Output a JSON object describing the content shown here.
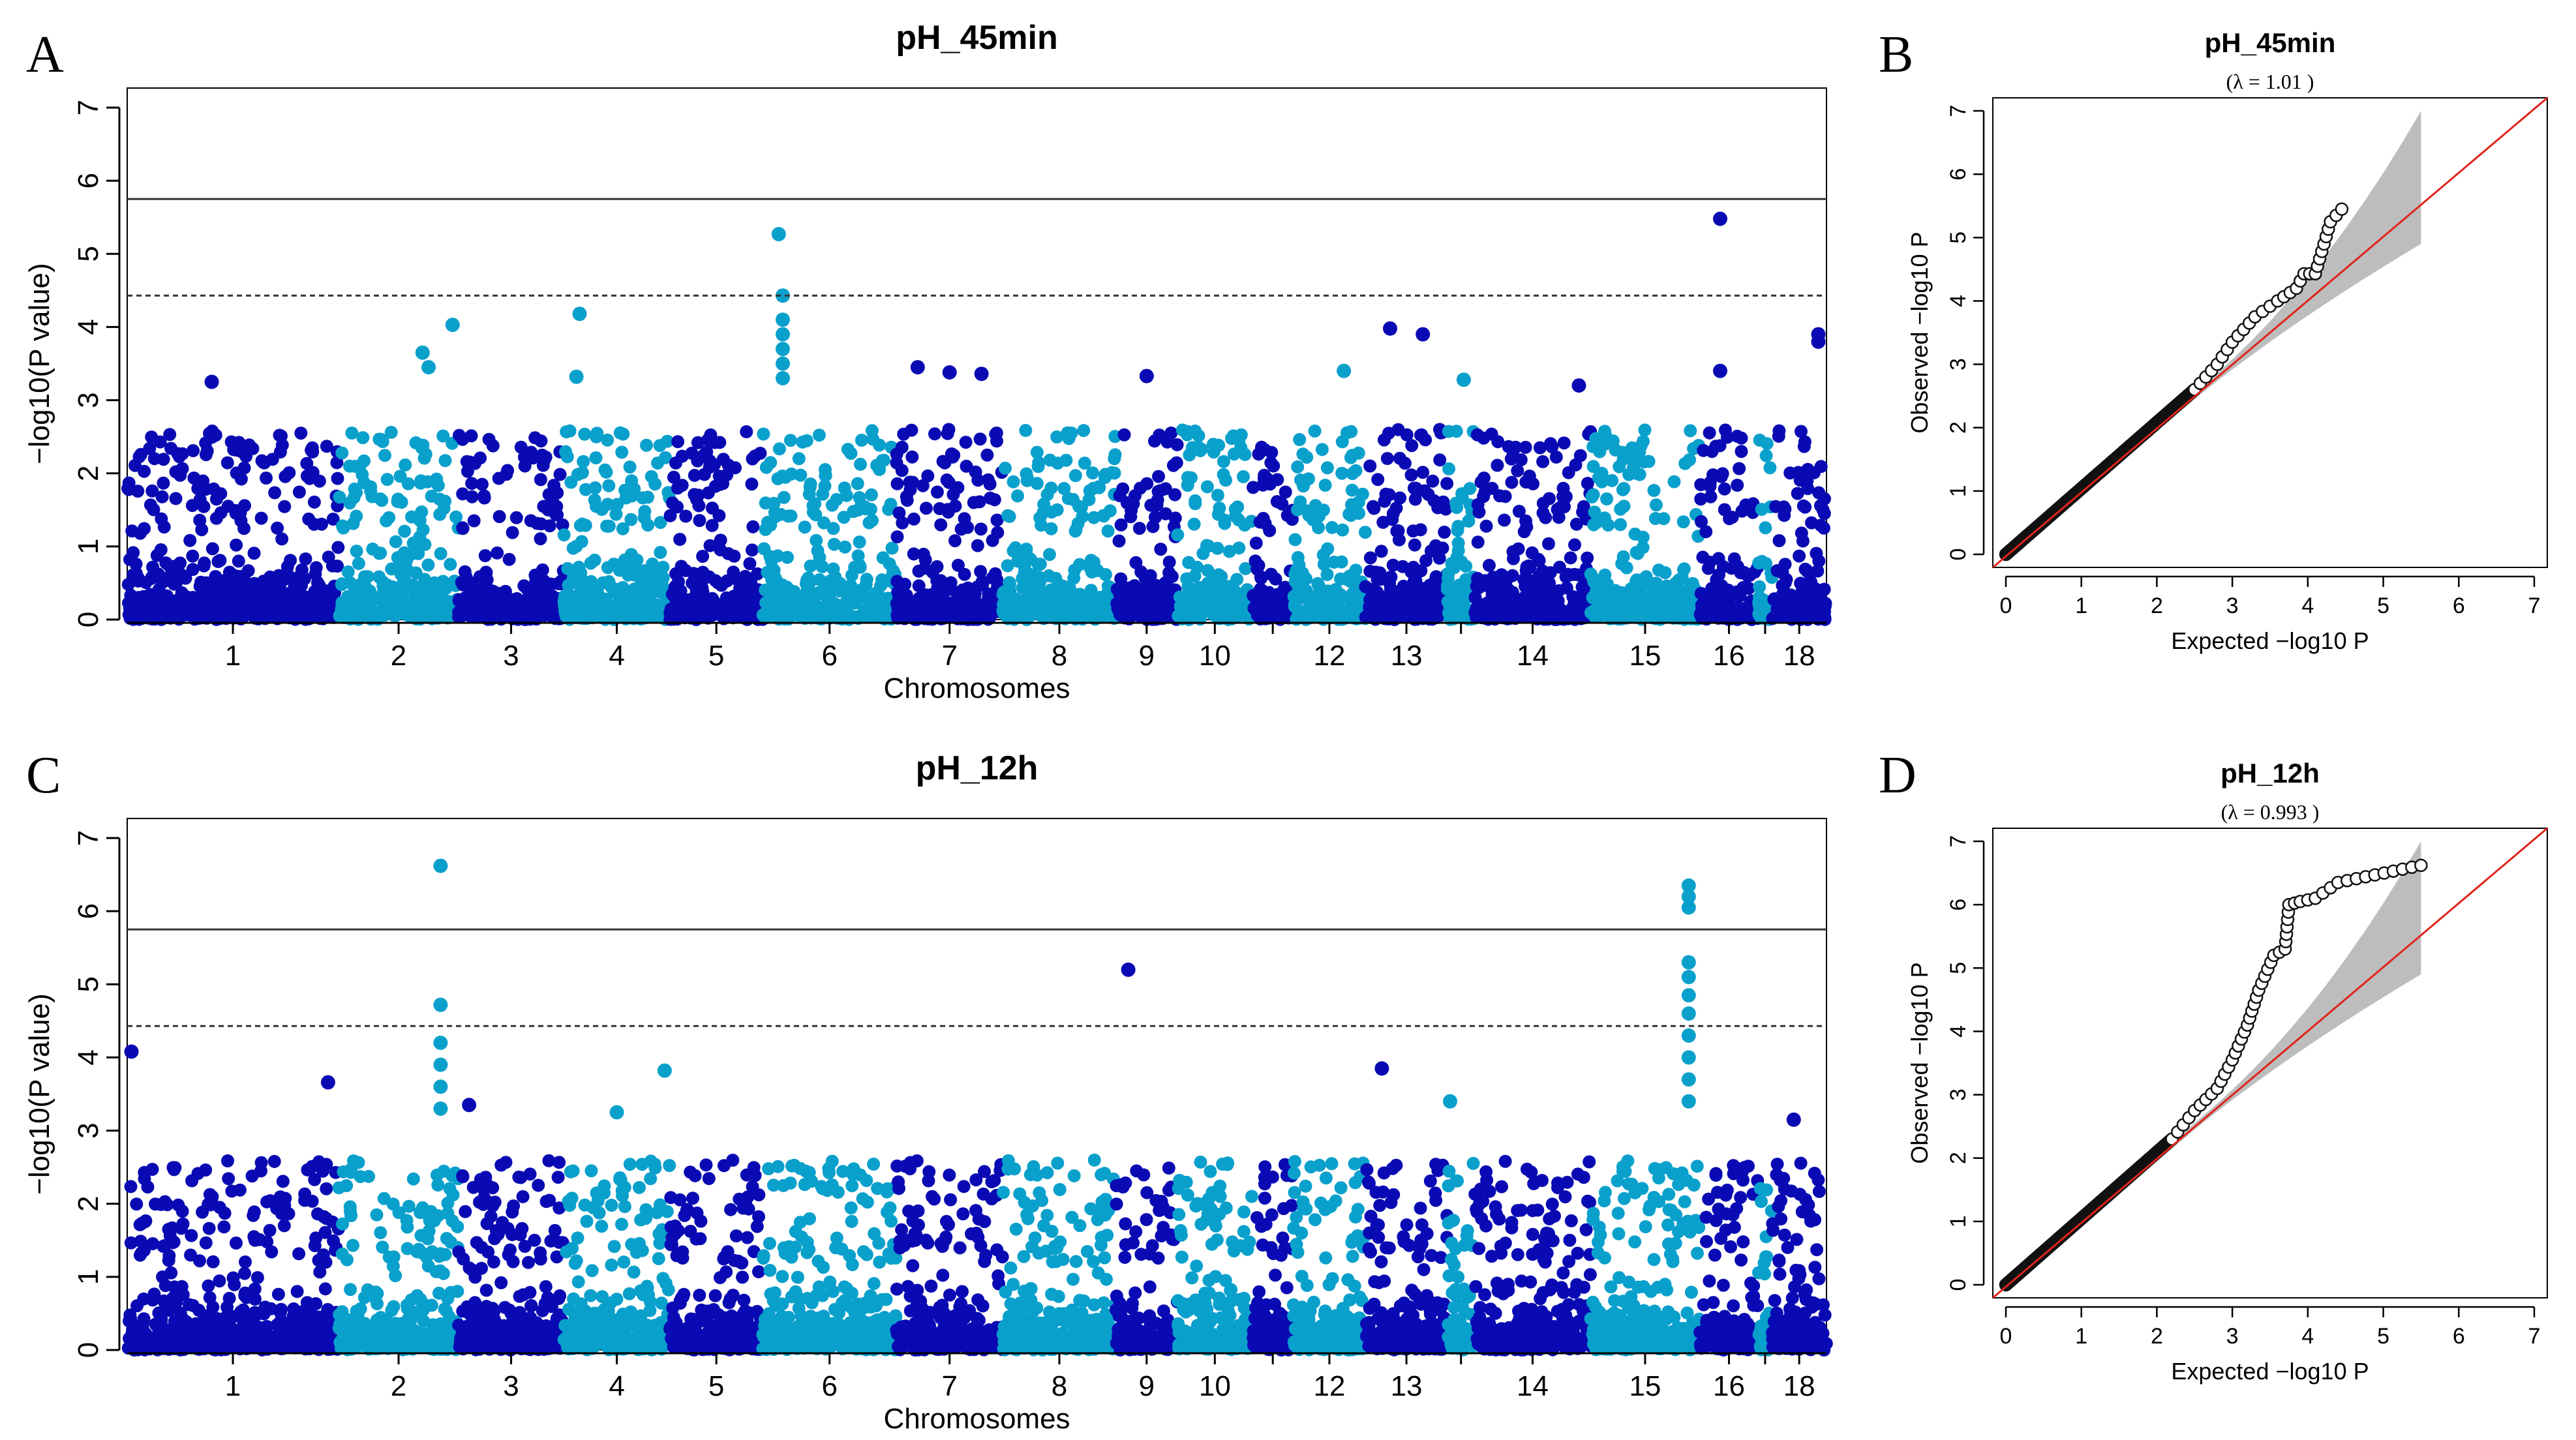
{
  "chart_data": [
    {
      "panel": "A",
      "type": "scatter",
      "subtype": "manhattan",
      "title": "pH_45min",
      "xlabel": "Chromosomes",
      "ylabel": "−log10(P value)",
      "ylim": [
        0,
        7
      ],
      "yticks": [
        0,
        1,
        2,
        3,
        4,
        5,
        6,
        7
      ],
      "thresholds": {
        "solid": 5.75,
        "dashed": 4.43
      },
      "chromosomes": [
        "1",
        "2",
        "3",
        "4",
        "5",
        "6",
        "7",
        "8",
        "9",
        "10",
        "",
        "12",
        "13",
        "",
        "14",
        "15",
        "16",
        "",
        "18"
      ],
      "colors": [
        "#0a0ab4",
        "#0aa0cc"
      ],
      "peaks": [
        {
          "chr_index": 1,
          "pos": 0.95,
          "value": 4.03
        },
        {
          "chr_index": 0,
          "pos": 0.4,
          "value": 3.25
        },
        {
          "chr_index": 1,
          "pos": 0.7,
          "value": 3.65
        },
        {
          "chr_index": 1,
          "pos": 0.75,
          "value": 3.45
        },
        {
          "chr_index": 3,
          "pos": 0.15,
          "value": 4.18
        },
        {
          "chr_index": 3,
          "pos": 0.12,
          "value": 3.32
        },
        {
          "chr_index": 5,
          "pos": 0.12,
          "value": 5.27
        },
        {
          "chr_index": 5,
          "pos": 0.15,
          "value": 4.43
        },
        {
          "chr_index": 5,
          "pos": 0.15,
          "value": 4.1
        },
        {
          "chr_index": 5,
          "pos": 0.15,
          "value": 3.9
        },
        {
          "chr_index": 5,
          "pos": 0.15,
          "value": 3.7
        },
        {
          "chr_index": 5,
          "pos": 0.15,
          "value": 3.5
        },
        {
          "chr_index": 5,
          "pos": 0.15,
          "value": 3.3
        },
        {
          "chr_index": 6,
          "pos": 0.2,
          "value": 3.45
        },
        {
          "chr_index": 6,
          "pos": 0.5,
          "value": 3.38
        },
        {
          "chr_index": 6,
          "pos": 0.8,
          "value": 3.36
        },
        {
          "chr_index": 8,
          "pos": 0.5,
          "value": 3.33
        },
        {
          "chr_index": 11,
          "pos": 0.7,
          "value": 3.4
        },
        {
          "chr_index": 12,
          "pos": 0.3,
          "value": 3.98
        },
        {
          "chr_index": 12,
          "pos": 0.7,
          "value": 3.9
        },
        {
          "chr_index": 13,
          "pos": 0.6,
          "value": 3.28
        },
        {
          "chr_index": 14,
          "pos": 0.9,
          "value": 3.2
        },
        {
          "chr_index": 16,
          "pos": 0.35,
          "value": 5.48
        },
        {
          "chr_index": 16,
          "pos": 0.35,
          "value": 3.4
        },
        {
          "chr_index": 18,
          "pos": 0.85,
          "value": 3.9
        },
        {
          "chr_index": 18,
          "pos": 0.85,
          "value": 3.8
        }
      ]
    },
    {
      "panel": "B",
      "type": "scatter",
      "subtype": "qq",
      "title": "pH_45min",
      "lambda_label": "(λ = 1.01 )",
      "xlabel": "Expected  −log10 P",
      "ylabel": "Observed  −log10 P",
      "xlim": [
        0,
        7
      ],
      "ylim": [
        0,
        7
      ],
      "ticks": [
        0,
        1,
        2,
        3,
        4,
        5,
        6,
        7
      ],
      "curve": [
        [
          0,
          0
        ],
        [
          2.5,
          2.6
        ],
        [
          2.8,
          3.0
        ],
        [
          3.0,
          3.35
        ],
        [
          3.3,
          3.75
        ],
        [
          3.6,
          4.0
        ],
        [
          3.85,
          4.2
        ],
        [
          3.95,
          4.43
        ],
        [
          4.1,
          4.43
        ],
        [
          4.3,
          5.25
        ],
        [
          4.45,
          5.45
        ]
      ],
      "envelope_upper_end": [
        5.5,
        7.0
      ],
      "envelope_lower_end": [
        5.5,
        4.9
      ]
    },
    {
      "panel": "C",
      "type": "scatter",
      "subtype": "manhattan",
      "title": "pH_12h",
      "xlabel": "Chromosomes",
      "ylabel": "−log10(P value)",
      "ylim": [
        0,
        7
      ],
      "yticks": [
        0,
        1,
        2,
        3,
        4,
        5,
        6,
        7
      ],
      "thresholds": {
        "solid": 5.75,
        "dashed": 4.43
      },
      "chromosomes": [
        "1",
        "2",
        "3",
        "4",
        "5",
        "6",
        "7",
        "8",
        "9",
        "10",
        "",
        "12",
        "13",
        "",
        "14",
        "15",
        "16",
        "",
        "18"
      ],
      "colors": [
        "#0a0ab4",
        "#0aa0cc"
      ],
      "peaks": [
        {
          "chr_index": 0,
          "pos": 0.02,
          "value": 4.08
        },
        {
          "chr_index": 0,
          "pos": 0.95,
          "value": 3.66
        },
        {
          "chr_index": 1,
          "pos": 0.85,
          "value": 6.62
        },
        {
          "chr_index": 1,
          "pos": 0.85,
          "value": 4.72
        },
        {
          "chr_index": 1,
          "pos": 0.85,
          "value": 4.2
        },
        {
          "chr_index": 1,
          "pos": 0.85,
          "value": 3.9
        },
        {
          "chr_index": 1,
          "pos": 0.85,
          "value": 3.6
        },
        {
          "chr_index": 1,
          "pos": 0.85,
          "value": 3.3
        },
        {
          "chr_index": 2,
          "pos": 0.1,
          "value": 3.35
        },
        {
          "chr_index": 3,
          "pos": 0.5,
          "value": 3.25
        },
        {
          "chr_index": 3,
          "pos": 0.95,
          "value": 3.82
        },
        {
          "chr_index": 8,
          "pos": 0.2,
          "value": 5.2
        },
        {
          "chr_index": 12,
          "pos": 0.2,
          "value": 3.85
        },
        {
          "chr_index": 13,
          "pos": 0.1,
          "value": 3.4
        },
        {
          "chr_index": 15,
          "pos": 0.9,
          "value": 6.35
        },
        {
          "chr_index": 15,
          "pos": 0.9,
          "value": 6.2
        },
        {
          "chr_index": 15,
          "pos": 0.9,
          "value": 6.05
        },
        {
          "chr_index": 15,
          "pos": 0.9,
          "value": 5.3
        },
        {
          "chr_index": 15,
          "pos": 0.9,
          "value": 5.1
        },
        {
          "chr_index": 15,
          "pos": 0.9,
          "value": 4.85
        },
        {
          "chr_index": 15,
          "pos": 0.9,
          "value": 4.6
        },
        {
          "chr_index": 15,
          "pos": 0.9,
          "value": 4.3
        },
        {
          "chr_index": 15,
          "pos": 0.9,
          "value": 4.0
        },
        {
          "chr_index": 15,
          "pos": 0.9,
          "value": 3.7
        },
        {
          "chr_index": 15,
          "pos": 0.9,
          "value": 3.4
        },
        {
          "chr_index": 18,
          "pos": 0.4,
          "value": 3.15
        }
      ]
    },
    {
      "panel": "D",
      "type": "scatter",
      "subtype": "qq",
      "title": "pH_12h",
      "lambda_label": "(λ = 0.993 )",
      "xlabel": "Expected  −log10 P",
      "ylabel": "Observed  −log10 P",
      "xlim": [
        0,
        7
      ],
      "ylim": [
        0,
        7
      ],
      "ticks": [
        0,
        1,
        2,
        3,
        4,
        5,
        6,
        7
      ],
      "curve": [
        [
          0,
          0
        ],
        [
          2.2,
          2.3
        ],
        [
          2.5,
          2.75
        ],
        [
          2.8,
          3.1
        ],
        [
          3.0,
          3.55
        ],
        [
          3.2,
          4.1
        ],
        [
          3.35,
          4.65
        ],
        [
          3.55,
          5.2
        ],
        [
          3.7,
          5.3
        ],
        [
          3.75,
          6.0
        ],
        [
          3.9,
          6.05
        ],
        [
          4.1,
          6.1
        ],
        [
          4.4,
          6.35
        ],
        [
          5.5,
          6.62
        ]
      ],
      "envelope_upper_end": [
        5.5,
        7.0
      ],
      "envelope_lower_end": [
        5.5,
        4.9
      ]
    }
  ],
  "labels": {
    "A": "A",
    "B": "B",
    "C": "C",
    "D": "D"
  }
}
